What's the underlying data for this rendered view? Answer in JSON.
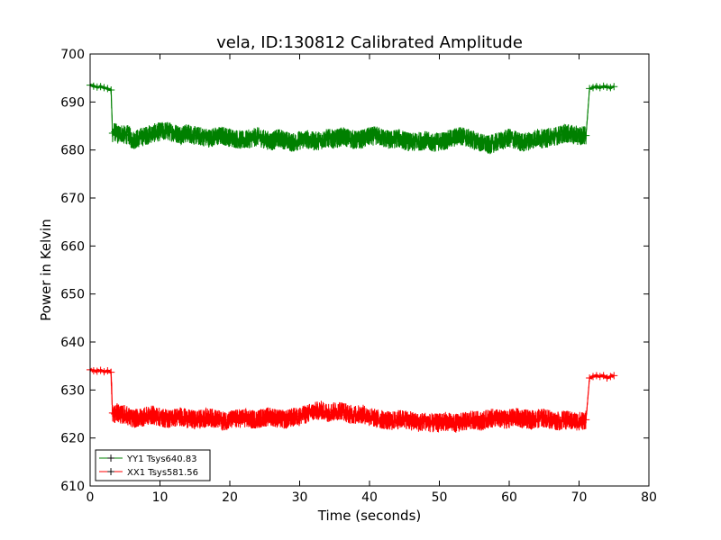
{
  "chart_data": {
    "type": "line",
    "title": "vela, ID:130812 Calibrated Amplitude",
    "xlabel": "Time (seconds)",
    "ylabel": "Power in Kelvin",
    "xlim": [
      0,
      80
    ],
    "ylim": [
      610,
      700
    ],
    "xticks": [
      "0",
      "10",
      "20",
      "30",
      "40",
      "50",
      "60",
      "70",
      "80"
    ],
    "yticks": [
      "610",
      "620",
      "630",
      "640",
      "650",
      "660",
      "670",
      "680",
      "690",
      "700"
    ],
    "grid": false,
    "legend_position": "lower-left",
    "series": [
      {
        "name": "YY1 Tsys640.83",
        "color": "#008000",
        "marker": "+",
        "x": [
          0,
          0.5,
          1,
          1.5,
          2,
          2.5,
          3,
          3.2,
          3.5,
          4,
          4.5,
          5,
          5.5,
          6,
          7,
          8,
          9,
          10,
          11,
          12,
          13,
          14,
          15,
          16,
          17,
          18,
          19,
          20,
          21,
          22,
          23,
          24,
          25,
          26,
          27,
          28,
          29,
          30,
          31,
          32,
          33,
          34,
          35,
          36,
          37,
          38,
          39,
          40,
          41,
          42,
          43,
          44,
          45,
          46,
          47,
          48,
          49,
          50,
          51,
          52,
          53,
          54,
          55,
          56,
          57,
          58,
          59,
          60,
          61,
          62,
          63,
          64,
          65,
          66,
          67,
          68,
          69,
          70,
          71,
          71.5,
          72,
          72.5,
          73,
          73.5,
          74,
          74.5,
          75
        ],
        "values": [
          693.5,
          693.3,
          693.1,
          693.2,
          693.0,
          692.8,
          692.5,
          683.5,
          683.8,
          683.2,
          683.5,
          683.0,
          683.3,
          682.0,
          682.5,
          683.0,
          683.5,
          683.8,
          684.0,
          683.6,
          683.2,
          683.5,
          683.0,
          682.8,
          682.5,
          682.8,
          683.0,
          682.6,
          682.3,
          682.0,
          682.4,
          682.8,
          682.2,
          681.8,
          682.5,
          682.0,
          681.5,
          682.0,
          682.3,
          681.8,
          682.0,
          682.5,
          682.2,
          682.8,
          682.5,
          682.0,
          682.3,
          682.8,
          683.0,
          682.5,
          682.0,
          682.5,
          682.0,
          681.5,
          681.8,
          682.0,
          681.5,
          681.8,
          682.0,
          682.5,
          683.0,
          682.5,
          682.0,
          681.5,
          681.0,
          681.5,
          682.0,
          682.5,
          682.0,
          681.5,
          682.0,
          682.5,
          682.3,
          682.8,
          683.0,
          683.5,
          683.2,
          683.0,
          683.0,
          692.8,
          693.0,
          693.2,
          693.0,
          693.3,
          693.1,
          693.0,
          693.2
        ],
        "noise_amplitude": 2.0
      },
      {
        "name": "XX1 Tsys581.56",
        "color": "#ff0000",
        "marker": "+",
        "x": [
          0,
          0.5,
          1,
          1.5,
          2,
          2.5,
          3,
          3.2,
          3.5,
          4,
          4.5,
          5,
          5.5,
          6,
          7,
          8,
          9,
          10,
          11,
          12,
          13,
          14,
          15,
          16,
          17,
          18,
          19,
          20,
          21,
          22,
          23,
          24,
          25,
          26,
          27,
          28,
          29,
          30,
          31,
          32,
          33,
          34,
          35,
          36,
          37,
          38,
          39,
          40,
          41,
          42,
          43,
          44,
          45,
          46,
          47,
          48,
          49,
          50,
          51,
          52,
          53,
          54,
          55,
          56,
          57,
          58,
          59,
          60,
          61,
          62,
          63,
          64,
          65,
          66,
          67,
          68,
          69,
          70,
          71,
          71.5,
          72,
          72.5,
          73,
          73.5,
          74,
          74.5,
          75
        ],
        "values": [
          634.2,
          634.0,
          633.9,
          634.1,
          633.8,
          634.0,
          633.7,
          625.2,
          625.0,
          625.3,
          624.8,
          625.0,
          624.5,
          624.0,
          624.2,
          624.5,
          624.8,
          624.3,
          624.0,
          624.2,
          624.5,
          624.0,
          623.8,
          624.0,
          624.3,
          624.0,
          623.5,
          623.8,
          624.0,
          624.2,
          623.8,
          624.0,
          624.3,
          624.5,
          624.0,
          623.8,
          624.3,
          624.5,
          625.0,
          625.5,
          625.8,
          625.3,
          625.5,
          625.8,
          625.0,
          624.8,
          625.0,
          624.5,
          624.0,
          623.8,
          623.5,
          623.8,
          624.0,
          623.5,
          623.2,
          623.5,
          623.0,
          623.2,
          623.5,
          623.0,
          623.3,
          623.5,
          623.8,
          623.5,
          624.0,
          624.2,
          623.8,
          624.0,
          624.3,
          624.0,
          623.8,
          624.0,
          624.2,
          623.8,
          623.5,
          623.8,
          623.5,
          623.5,
          623.8,
          632.5,
          632.8,
          633.0,
          632.8,
          633.0,
          632.5,
          632.8,
          633.0
        ],
        "noise_amplitude": 2.0
      }
    ]
  }
}
